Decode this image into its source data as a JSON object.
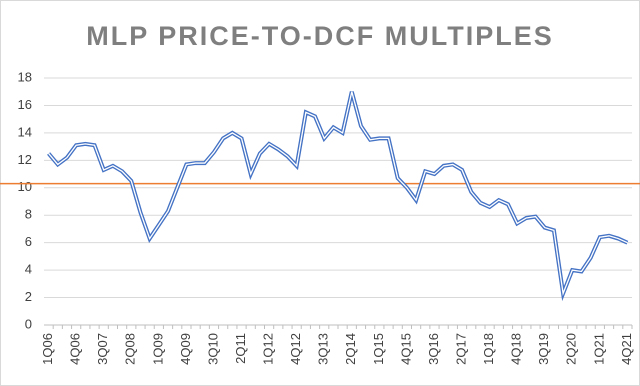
{
  "chart_data": {
    "type": "line",
    "title": "MLP PRICE-TO-DCF MULTIPLES",
    "categories": [
      "1Q06",
      null,
      null,
      "4Q06",
      null,
      null,
      "3Q07",
      null,
      null,
      "2Q08",
      null,
      null,
      "1Q09",
      null,
      null,
      "4Q09",
      null,
      null,
      "3Q10",
      null,
      null,
      "2Q11",
      null,
      null,
      "1Q12",
      null,
      null,
      "4Q12",
      null,
      null,
      "3Q13",
      null,
      null,
      "2Q14",
      null,
      null,
      "1Q15",
      null,
      null,
      "4Q15",
      null,
      null,
      "3Q16",
      null,
      null,
      "2Q17",
      null,
      null,
      "1Q18",
      null,
      null,
      "4Q18",
      null,
      null,
      "3Q19",
      null,
      null,
      "2Q20",
      null,
      null,
      "1Q21",
      null,
      null,
      "4Q21"
    ],
    "series": [
      {
        "color": "#4472c4",
        "values": [
          12.5,
          11.7,
          12.2,
          13.1,
          13.2,
          13.1,
          11.3,
          11.6,
          11.2,
          10.5,
          8.2,
          6.3,
          7.3,
          8.3,
          10.0,
          11.7,
          11.8,
          11.8,
          12.6,
          13.6,
          14.0,
          13.6,
          11.0,
          12.5,
          13.2,
          12.8,
          12.3,
          11.6,
          15.5,
          15.2,
          13.6,
          14.4,
          14.0,
          17.0,
          14.5,
          13.5,
          13.6,
          13.6,
          10.7,
          10.0,
          9.1,
          11.2,
          11.0,
          11.6,
          11.7,
          11.3,
          9.7,
          8.9,
          8.6,
          9.1,
          8.8,
          7.4,
          7.8,
          7.9,
          7.1,
          6.9,
          2.3,
          4.0,
          3.9,
          4.9,
          6.4,
          6.5,
          6.3,
          6.0
        ]
      }
    ],
    "reference_line": {
      "value": 10.3,
      "color": "#ed7d31"
    },
    "ylim": [
      0,
      18
    ],
    "yticks": [
      0,
      2,
      4,
      6,
      8,
      10,
      12,
      14,
      16,
      18
    ],
    "grid": true
  }
}
